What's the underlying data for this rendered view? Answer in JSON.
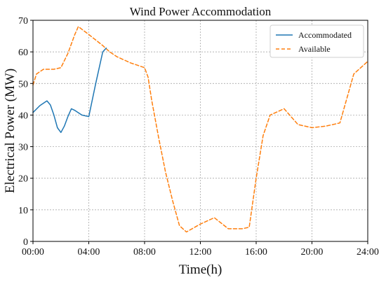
{
  "chart_data": {
    "type": "line",
    "title": "Wind Power Accommodation",
    "xlabel": "Time(h)",
    "ylabel": "Electrical Power (MW)",
    "xlim": [
      0,
      24
    ],
    "ylim": [
      0,
      70
    ],
    "x_ticks": [
      0,
      4,
      8,
      12,
      16,
      20,
      24
    ],
    "x_tick_labels": [
      "00:00",
      "04:00",
      "08:00",
      "12:00",
      "16:00",
      "20:00",
      "24:00"
    ],
    "y_ticks": [
      0,
      10,
      20,
      30,
      40,
      50,
      60,
      70
    ],
    "y_tick_labels": [
      "0",
      "10",
      "20",
      "30",
      "40",
      "50",
      "60",
      "70"
    ],
    "grid": true,
    "legend_position": "top-right",
    "series": [
      {
        "name": "Accommodated",
        "color": "#1f77b4",
        "style": "solid",
        "x": [
          0,
          0.5,
          1.0,
          1.25,
          1.5,
          1.75,
          2.0,
          2.25,
          2.5,
          2.75,
          3.0,
          3.5,
          4.0,
          4.5,
          5.0,
          5.25
        ],
        "y": [
          40.8,
          43.0,
          44.5,
          43.2,
          40.0,
          36.0,
          34.5,
          36.5,
          39.5,
          42.0,
          41.5,
          40.0,
          39.5,
          50.0,
          60.0,
          61.2
        ]
      },
      {
        "name": "Available",
        "color": "#ff7f0e",
        "style": "dashed",
        "x": [
          0,
          0.25,
          0.75,
          1.0,
          1.5,
          2.0,
          2.5,
          3.0,
          3.25,
          4.0,
          5.0,
          5.5,
          6.0,
          7.0,
          8.0,
          8.25,
          8.5,
          9.0,
          9.5,
          10.0,
          10.5,
          11.0,
          12.0,
          13.0,
          14.0,
          15.0,
          15.5,
          16.0,
          16.5,
          17.0,
          18.0,
          19.0,
          20.0,
          21.0,
          21.5,
          22.0,
          23.0,
          24.0
        ],
        "y": [
          49.5,
          53.0,
          54.5,
          54.5,
          54.5,
          55.0,
          59.5,
          65.5,
          68.0,
          65.5,
          62.0,
          60.0,
          58.5,
          56.5,
          55.0,
          52.0,
          45.0,
          33.0,
          22.0,
          13.0,
          5.0,
          3.0,
          5.5,
          7.5,
          4.0,
          4.0,
          4.5,
          20.0,
          33.5,
          40.0,
          42.0,
          37.0,
          36.0,
          36.5,
          37.0,
          37.5,
          53.0,
          57.0
        ]
      }
    ]
  }
}
